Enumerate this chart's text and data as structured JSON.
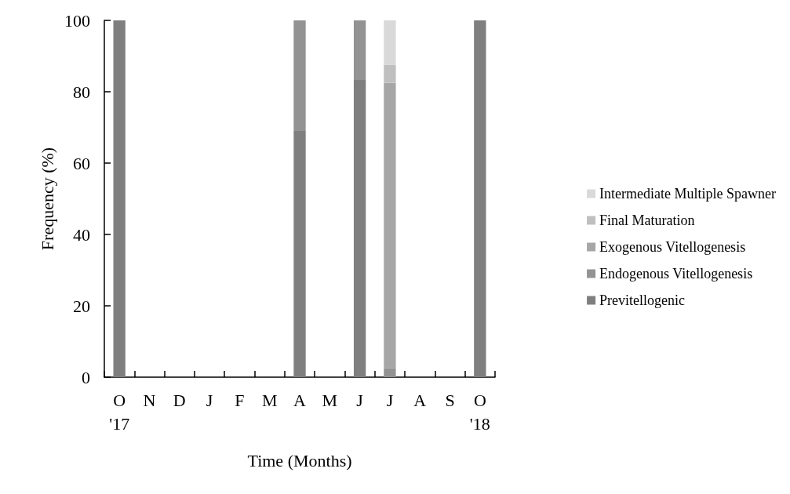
{
  "chart_data": {
    "type": "bar",
    "stacked": true,
    "xlabel": "Time (Months)",
    "ylabel": "Frequency (%)",
    "categories": [
      "O\n'17",
      "N",
      "D",
      "J",
      "F",
      "M",
      "A",
      "M",
      "J",
      "J",
      "A",
      "S",
      "O\n'18"
    ],
    "series": [
      {
        "name": "Previtellogenic",
        "color": "#7f7f7f",
        "values": [
          100,
          null,
          null,
          null,
          null,
          null,
          69,
          null,
          83.3,
          null,
          null,
          null,
          100
        ]
      },
      {
        "name": "Endogenous Vitellogenesis",
        "color": "#939393",
        "values": [
          null,
          null,
          null,
          null,
          null,
          null,
          31,
          null,
          16.7,
          2.5,
          null,
          null,
          null
        ]
      },
      {
        "name": "Exogenous Vitellogenesis",
        "color": "#a6a6a6",
        "values": [
          null,
          null,
          null,
          null,
          null,
          null,
          null,
          null,
          null,
          80,
          null,
          null,
          null
        ]
      },
      {
        "name": "Final Maturation",
        "color": "#bfbfbf",
        "values": [
          null,
          null,
          null,
          null,
          null,
          null,
          null,
          null,
          null,
          5,
          null,
          null,
          null
        ]
      },
      {
        "name": "Intermediate Multiple Spawner",
        "color": "#d9d9d9",
        "values": [
          null,
          null,
          null,
          null,
          null,
          null,
          null,
          null,
          null,
          12.5,
          null,
          null,
          null
        ]
      }
    ],
    "ylim": [
      0,
      100
    ],
    "yticks": [
      0,
      20,
      40,
      60,
      80,
      100
    ],
    "grid": false,
    "legend": "right"
  }
}
